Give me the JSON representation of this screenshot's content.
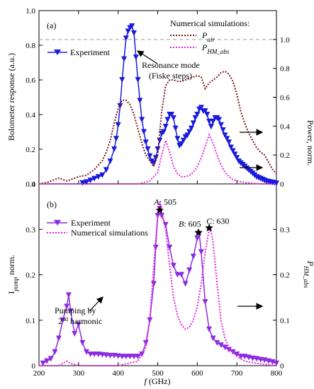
{
  "chart_data": [
    {
      "panel_label": "(a)",
      "type": "line",
      "ylabel": "Bolometer response (a.u.)",
      "ylabel_right": "Power, norm.",
      "xlim": [
        200,
        800
      ],
      "ylim": [
        0,
        1.0
      ],
      "ylim_right": [
        0,
        1.2
      ],
      "yticks": [
        "0",
        "0.2",
        "0.4",
        "0.6",
        "0.8",
        "1.0"
      ],
      "yticks_right": [
        "0",
        "0.2",
        "0.4",
        "0.6",
        "0.8",
        "1.0"
      ],
      "yticks_right_values": [
        0,
        0.2,
        0.4,
        0.6,
        0.8,
        1.0
      ],
      "reference_line_right": 1.0,
      "legend_title": "Numerical simulations:",
      "legend_experiment": "Experiment",
      "annotation": "Resonance mode\n(Fiske steps)",
      "series": [
        {
          "name": "Experiment",
          "axis": "left",
          "color": "#1a1adc",
          "style": "solid-marker",
          "x": [
            310,
            320,
            330,
            340,
            350,
            360,
            370,
            380,
            390,
            395,
            400,
            405,
            410,
            415,
            420,
            425,
            430,
            435,
            440,
            445,
            450,
            455,
            460,
            465,
            470,
            475,
            480,
            485,
            490,
            495,
            500,
            505,
            510,
            515,
            520,
            525,
            530,
            535,
            540,
            545,
            550,
            555,
            560,
            565,
            570,
            575,
            580,
            585,
            590,
            595,
            600,
            605,
            610,
            615,
            620,
            625,
            630,
            635,
            640,
            645,
            650,
            655,
            660,
            665,
            670,
            675,
            680,
            685,
            690,
            695,
            700,
            705,
            710,
            715,
            720,
            725,
            730,
            735,
            740,
            745,
            750,
            755,
            760,
            765,
            770,
            775,
            780,
            785,
            790,
            795,
            800
          ],
          "y": [
            0.005,
            0.01,
            0.02,
            0.03,
            0.04,
            0.05,
            0.08,
            0.13,
            0.2,
            0.26,
            0.34,
            0.45,
            0.6,
            0.72,
            0.84,
            0.88,
            0.9,
            0.91,
            0.87,
            0.73,
            0.6,
            0.48,
            0.37,
            0.3,
            0.24,
            0.2,
            0.16,
            0.13,
            0.12,
            0.15,
            0.2,
            0.25,
            0.29,
            0.3,
            0.33,
            0.37,
            0.4,
            0.4,
            0.38,
            0.32,
            0.26,
            0.22,
            0.23,
            0.25,
            0.27,
            0.28,
            0.3,
            0.32,
            0.35,
            0.38,
            0.4,
            0.43,
            0.44,
            0.42,
            0.42,
            0.4,
            0.36,
            0.33,
            0.36,
            0.38,
            0.38,
            0.37,
            0.34,
            0.31,
            0.28,
            0.26,
            0.24,
            0.21,
            0.19,
            0.17,
            0.15,
            0.13,
            0.12,
            0.11,
            0.1,
            0.09,
            0.08,
            0.07,
            0.06,
            0.05,
            0.04,
            0.035,
            0.03,
            0.025,
            0.02,
            0.015,
            0.012,
            0.01,
            0.008,
            0.005,
            0.003
          ]
        },
        {
          "name": "P_air",
          "axis": "right",
          "color": "#7a1a1a",
          "style": "dotted",
          "x": [
            200,
            220,
            240,
            250,
            260,
            270,
            280,
            290,
            300,
            320,
            340,
            360,
            370,
            380,
            390,
            400,
            410,
            420,
            430,
            440,
            450,
            460,
            470,
            480,
            490,
            500,
            505,
            510,
            520,
            530,
            540,
            550,
            560,
            570,
            580,
            590,
            600,
            610,
            620,
            630,
            640,
            650,
            660,
            670,
            680,
            690,
            700,
            710,
            720,
            730,
            740,
            750,
            760,
            770,
            780,
            790,
            800
          ],
          "y": [
            0.0,
            0.01,
            0.03,
            0.04,
            0.03,
            0.02,
            0.03,
            0.04,
            0.05,
            0.06,
            0.1,
            0.16,
            0.22,
            0.3,
            0.42,
            0.52,
            0.58,
            0.58,
            0.55,
            0.48,
            0.38,
            0.28,
            0.2,
            0.16,
            0.12,
            0.2,
            0.35,
            0.5,
            0.68,
            0.72,
            0.72,
            0.71,
            0.71,
            0.72,
            0.73,
            0.74,
            0.75,
            0.74,
            0.66,
            0.7,
            0.72,
            0.74,
            0.77,
            0.78,
            0.76,
            0.71,
            0.62,
            0.5,
            0.42,
            0.35,
            0.3,
            0.25,
            0.22,
            0.2,
            0.15,
            0.1,
            0.07
          ]
        },
        {
          "name": "P_HM_abs",
          "axis": "right",
          "color": "#e025e0",
          "style": "dotted",
          "x": [
            200,
            300,
            400,
            450,
            480,
            500,
            510,
            520,
            530,
            540,
            550,
            560,
            570,
            580,
            590,
            600,
            610,
            620,
            630,
            640,
            650,
            660,
            670,
            680,
            690,
            700,
            720,
            740,
            760,
            780,
            800
          ],
          "y": [
            0.0,
            0.0,
            0.0,
            0.0,
            0.02,
            0.08,
            0.2,
            0.3,
            0.22,
            0.12,
            0.07,
            0.05,
            0.05,
            0.06,
            0.08,
            0.12,
            0.18,
            0.26,
            0.34,
            0.28,
            0.2,
            0.13,
            0.08,
            0.05,
            0.03,
            0.02,
            0.01,
            0.005,
            0.0,
            0.0,
            0.0
          ]
        }
      ]
    },
    {
      "panel_label": "(b)",
      "type": "line",
      "xlabel": "f (GHz)",
      "ylabel": "I_pump norm.",
      "ylabel_right": "P_HM_abs",
      "xlim": [
        200,
        800
      ],
      "ylim": [
        0,
        0.4
      ],
      "ylim_right": [
        0,
        0.4
      ],
      "xticks": [
        "200",
        "300",
        "400",
        "500",
        "600",
        "700",
        "800"
      ],
      "yticks": [
        "0",
        "0.1",
        "0.2",
        "0.3",
        "0.4"
      ],
      "yticks_right": [
        "0",
        "0.1",
        "0.2",
        "0.3"
      ],
      "legend_experiment": "Experiment",
      "legend_simulation": "Numerical simulations",
      "annotation_line1": "Pumping by",
      "annotation_line2": "harmonic",
      "annotation_ordinal_number": "2",
      "annotation_ordinal_suffix": "nd",
      "markers": [
        {
          "label": "A",
          "value": "505",
          "x": 505,
          "y": 0.342
        },
        {
          "label": "B",
          "value": "605",
          "x": 603,
          "y": 0.293
        },
        {
          "label": "C",
          "value": "630",
          "x": 630,
          "y": 0.303
        }
      ],
      "series": [
        {
          "name": "Experiment",
          "axis": "left",
          "color": "#8a2be2",
          "style": "solid-marker",
          "x": [
            210,
            220,
            230,
            240,
            250,
            260,
            270,
            275,
            280,
            290,
            300,
            310,
            320,
            330,
            340,
            350,
            360,
            370,
            380,
            390,
            400,
            410,
            420,
            430,
            440,
            450,
            460,
            470,
            480,
            490,
            495,
            500,
            505,
            510,
            520,
            530,
            540,
            550,
            560,
            570,
            580,
            590,
            600,
            605,
            610,
            620,
            630,
            640,
            650,
            660,
            670,
            680,
            690,
            700,
            710,
            720,
            730,
            740,
            750,
            760,
            770,
            780,
            790,
            800
          ],
          "y": [
            0.005,
            0.01,
            0.015,
            0.03,
            0.06,
            0.1,
            0.13,
            0.155,
            0.12,
            0.07,
            0.09,
            0.05,
            0.03,
            0.025,
            0.025,
            0.025,
            0.024,
            0.023,
            0.022,
            0.022,
            0.021,
            0.02,
            0.02,
            0.02,
            0.02,
            0.02,
            0.025,
            0.05,
            0.1,
            0.18,
            0.26,
            0.33,
            0.345,
            0.33,
            0.31,
            0.26,
            0.22,
            0.2,
            0.2,
            0.18,
            0.21,
            0.24,
            0.28,
            0.29,
            0.25,
            0.14,
            0.08,
            0.06,
            0.05,
            0.045,
            0.04,
            0.035,
            0.03,
            0.025,
            0.02,
            0.02,
            0.018,
            0.016,
            0.015,
            0.013,
            0.012,
            0.01,
            0.008,
            0.005
          ]
        },
        {
          "name": "Numerical simulations",
          "axis": "right",
          "color": "#e025e0",
          "style": "dotted",
          "x": [
            200,
            250,
            270,
            280,
            300,
            350,
            400,
            450,
            470,
            480,
            490,
            500,
            505,
            510,
            520,
            530,
            540,
            550,
            560,
            570,
            580,
            590,
            600,
            610,
            620,
            630,
            635,
            640,
            650,
            660,
            670,
            680,
            700,
            720,
            750,
            800
          ],
          "y": [
            0.0,
            0.0,
            0.01,
            0.005,
            0.0,
            0.0,
            0.0,
            0.01,
            0.04,
            0.1,
            0.22,
            0.33,
            0.36,
            0.34,
            0.3,
            0.22,
            0.15,
            0.11,
            0.09,
            0.08,
            0.085,
            0.1,
            0.13,
            0.18,
            0.25,
            0.3,
            0.295,
            0.27,
            0.18,
            0.1,
            0.06,
            0.04,
            0.02,
            0.01,
            0.005,
            0.0
          ]
        }
      ]
    }
  ]
}
